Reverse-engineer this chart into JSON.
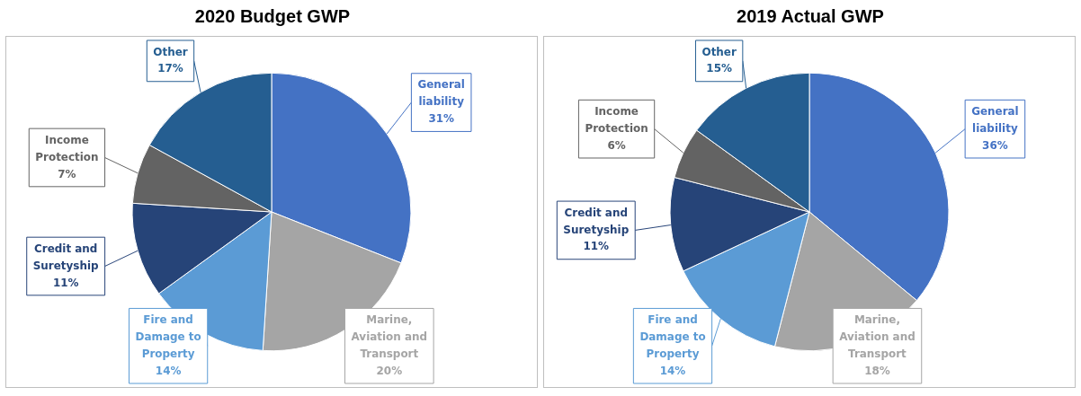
{
  "chart_data": [
    {
      "type": "pie",
      "title": "2020 Budget GWP",
      "categories": [
        "General liability",
        "Marine, Aviation and Transport",
        "Fire and Damage to Property",
        "Credit and Suretyship",
        "Income Protection",
        "Other"
      ],
      "values": [
        31,
        20,
        14,
        11,
        7,
        17
      ],
      "colors": [
        "#4472c4",
        "#a5a5a5",
        "#5b9bd5",
        "#264478",
        "#636363",
        "#255e91"
      ],
      "value_labels": [
        "31%",
        "20%",
        "14%",
        "11%",
        "7%",
        "17%"
      ],
      "legend": false
    },
    {
      "type": "pie",
      "title": "2019 Actual GWP",
      "categories": [
        "General liability",
        "Marine, Aviation and Transport",
        "Fire and Damage to Property",
        "Credit and Suretyship",
        "Income Protection",
        "Other"
      ],
      "values": [
        36,
        18,
        14,
        11,
        6,
        15
      ],
      "colors": [
        "#4472c4",
        "#a5a5a5",
        "#5b9bd5",
        "#264478",
        "#636363",
        "#255e91"
      ],
      "value_labels": [
        "36%",
        "18%",
        "14%",
        "11%",
        "6%",
        "15%"
      ],
      "legend": false
    }
  ]
}
